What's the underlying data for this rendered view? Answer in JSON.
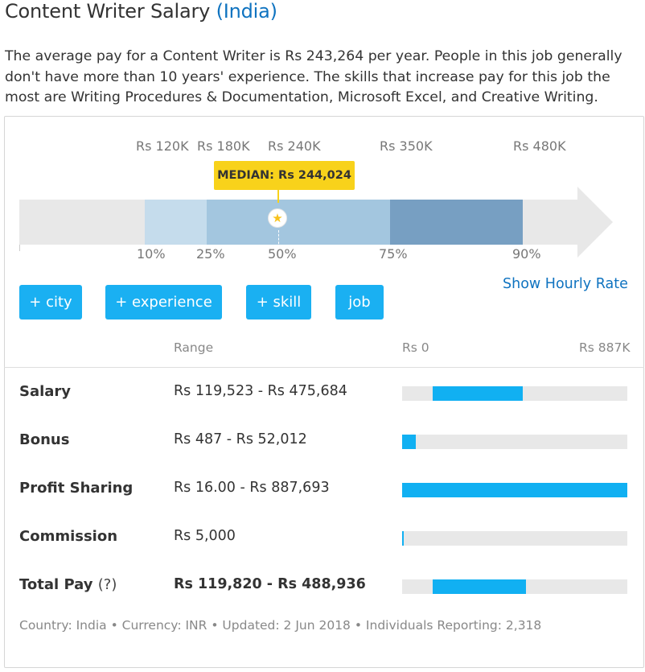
{
  "header": {
    "title": "Content Writer Salary",
    "location": "(India)"
  },
  "intro": "The average pay for a Content Writer is Rs 243,264 per year. People in this job generally don't have more than 10 years' experience. The skills that increase pay for this job the most are Writing Procedures & Documentation, Microsoft Excel, and Creative Writing.",
  "distribution": {
    "ticks": [
      "Rs 120K",
      "Rs 180K",
      "Rs 240K",
      "Rs 350K",
      "Rs 480K"
    ],
    "percentiles": [
      "10%",
      "25%",
      "50%",
      "75%",
      "90%"
    ],
    "median_label": "MEDIAN: Rs 244,024",
    "colors": {
      "track": "#e8e8e8",
      "p10_25": "#c5dcec",
      "p25_75": "#a3c6df",
      "p75_90": "#779fc2",
      "median": "#f8d21b"
    }
  },
  "filters": {
    "city": "+ city",
    "experience": "+ experience",
    "skill": "+ skill",
    "job": "job"
  },
  "hourly_link": "Show Hourly Rate",
  "table": {
    "range_header": "Range",
    "scale_min": "Rs 0",
    "scale_max": "Rs 887K",
    "rows": [
      {
        "label": "Salary",
        "range": "Rs 119,523 - Rs 475,684",
        "bar_start": 0.135,
        "bar_end": 0.536
      },
      {
        "label": "Bonus",
        "range": "Rs 487 - Rs 52,012",
        "bar_start": 0.0005,
        "bar_end": 0.059
      },
      {
        "label": "Profit Sharing",
        "range": "Rs 16.00 - Rs 887,693",
        "bar_start": 0.0,
        "bar_end": 1.0
      },
      {
        "label": "Commission",
        "range": "Rs 5,000",
        "bar_start": 0.0,
        "bar_end": 0.006
      },
      {
        "label": "Total Pay",
        "help": "(?)",
        "range": "Rs 119,820 - Rs 488,936",
        "bar_start": 0.135,
        "bar_end": 0.551
      }
    ],
    "bar_color": "#11b0f2"
  },
  "footer": "Country: India • Currency: INR • Updated: 2 Jun 2018 • Individuals Reporting: 2,318"
}
